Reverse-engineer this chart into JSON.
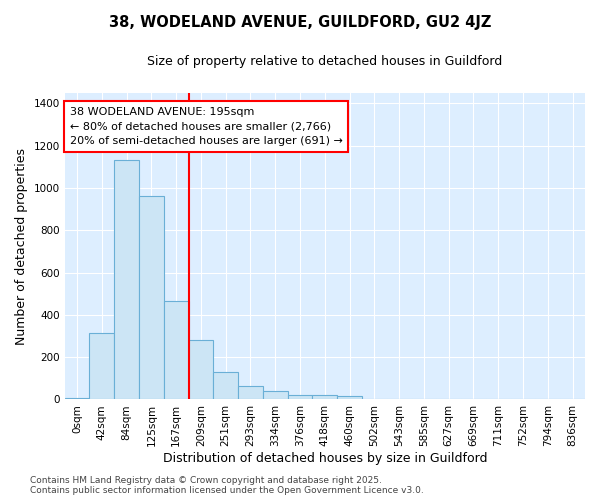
{
  "title": "38, WODELAND AVENUE, GUILDFORD, GU2 4JZ",
  "subtitle": "Size of property relative to detached houses in Guildford",
  "xlabel": "Distribution of detached houses by size in Guildford",
  "ylabel": "Number of detached properties",
  "background_color": "#ffffff",
  "plot_bg_color": "#ddeeff",
  "bar_color": "#cce5f5",
  "bar_edge_color": "#6aafd6",
  "annotation_text": "38 WODELAND AVENUE: 195sqm\n← 80% of detached houses are smaller (2,766)\n20% of semi-detached houses are larger (691) →",
  "vline_color": "#ff0000",
  "footnote": "Contains HM Land Registry data © Crown copyright and database right 2025.\nContains public sector information licensed under the Open Government Licence v3.0.",
  "categories": [
    "0sqm",
    "42sqm",
    "84sqm",
    "125sqm",
    "167sqm",
    "209sqm",
    "251sqm",
    "293sqm",
    "334sqm",
    "376sqm",
    "418sqm",
    "460sqm",
    "502sqm",
    "543sqm",
    "585sqm",
    "627sqm",
    "669sqm",
    "711sqm",
    "752sqm",
    "794sqm",
    "836sqm"
  ],
  "bar_heights": [
    5,
    315,
    1130,
    960,
    465,
    280,
    130,
    65,
    42,
    20,
    20,
    18,
    3,
    2,
    1,
    0,
    0,
    0,
    0,
    0,
    0
  ],
  "ylim": [
    0,
    1450
  ],
  "yticks": [
    0,
    200,
    400,
    600,
    800,
    1000,
    1200,
    1400
  ],
  "title_fontsize": 10.5,
  "subtitle_fontsize": 9,
  "axis_label_fontsize": 9,
  "tick_fontsize": 7.5,
  "annotation_fontsize": 8,
  "footnote_fontsize": 6.5,
  "vline_xindex": 5
}
